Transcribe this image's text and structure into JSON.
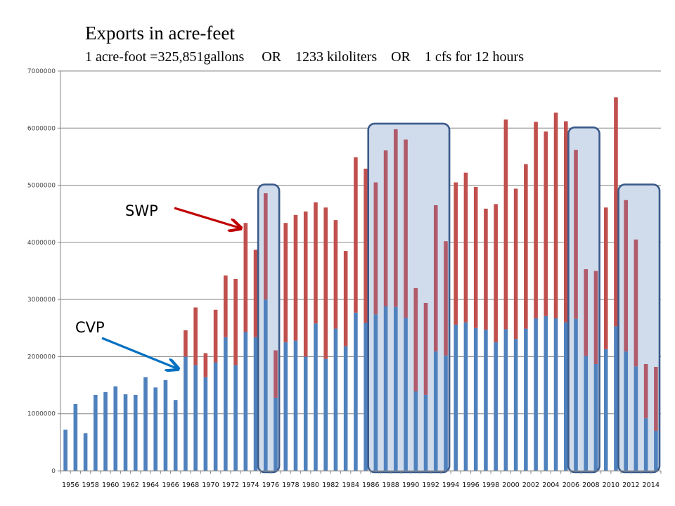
{
  "chart_data": {
    "type": "bar",
    "stacked": true,
    "title": "Exports in acre-feet",
    "subtitle": "1 acre-foot =325,851gallons     OR    1233 kiloliters    OR    1 cfs for 12 hours",
    "xlabel": "",
    "ylabel": "",
    "ylim": [
      0,
      7000000
    ],
    "yticks": [
      0,
      1000000,
      2000000,
      3000000,
      4000000,
      5000000,
      6000000,
      7000000
    ],
    "ytick_labels": [
      "0",
      "1000000",
      "2000000",
      "3000000",
      "4000000",
      "5000000",
      "6000000",
      "7000000"
    ],
    "grid": true,
    "legend": "none",
    "categories": [
      "1956",
      "1957",
      "1958",
      "1959",
      "1960",
      "1961",
      "1962",
      "1963",
      "1964",
      "1965",
      "1966",
      "1967",
      "1968",
      "1969",
      "1970",
      "1971",
      "1972",
      "1973",
      "1974",
      "1975",
      "1976",
      "1977",
      "1978",
      "1979",
      "1980",
      "1981",
      "1982",
      "1983",
      "1984",
      "1985",
      "1986",
      "1987",
      "1988",
      "1989",
      "1990",
      "1991",
      "1992",
      "1993",
      "1994",
      "1995",
      "1996",
      "1997",
      "1998",
      "1999",
      "2000",
      "2001",
      "2002",
      "2003",
      "2004",
      "2005",
      "2006",
      "2007",
      "2008",
      "2009",
      "2010",
      "2011",
      "2012",
      "2013",
      "2014",
      "2015"
    ],
    "xtick_labels": [
      "1956",
      "1958",
      "1960",
      "1962",
      "1964",
      "1966",
      "1968",
      "1970",
      "1972",
      "1974",
      "1976",
      "1978",
      "1980",
      "1982",
      "1984",
      "1986",
      "1988",
      "1990",
      "1992",
      "1994",
      "1996",
      "1998",
      "2000",
      "2002",
      "2004",
      "2006",
      "2008",
      "2010",
      "2012",
      "2014"
    ],
    "series": [
      {
        "name": "CVP",
        "color": "#4f81bd",
        "values": [
          720000,
          1170000,
          660000,
          1330000,
          1380000,
          1480000,
          1340000,
          1330000,
          1640000,
          1460000,
          1590000,
          1240000,
          2000000,
          1850000,
          1640000,
          1900000,
          2340000,
          1850000,
          2430000,
          2340000,
          3000000,
          1280000,
          2250000,
          2280000,
          2000000,
          2580000,
          1960000,
          2490000,
          2180000,
          2770000,
          2590000,
          2740000,
          2880000,
          2870000,
          2680000,
          1390000,
          1330000,
          2090000,
          2020000,
          2560000,
          2600000,
          2500000,
          2470000,
          2250000,
          2480000,
          2310000,
          2490000,
          2670000,
          2710000,
          2670000,
          2600000,
          2660000,
          2010000,
          1870000,
          2130000,
          2530000,
          2090000,
          1830000,
          920000,
          700000
        ]
      },
      {
        "name": "SWP",
        "color": "#c0504d",
        "values": [
          0,
          0,
          0,
          0,
          0,
          0,
          0,
          0,
          0,
          0,
          0,
          0,
          460000,
          1010000,
          420000,
          920000,
          1080000,
          1510000,
          1910000,
          1530000,
          1860000,
          830000,
          2090000,
          2200000,
          2540000,
          2120000,
          2650000,
          1900000,
          1670000,
          2720000,
          2700000,
          2310000,
          2730000,
          3110000,
          3120000,
          1810000,
          1610000,
          2560000,
          2000000,
          2490000,
          2620000,
          2470000,
          2120000,
          2420000,
          3670000,
          2630000,
          2880000,
          3440000,
          3230000,
          3600000,
          3520000,
          2960000,
          1520000,
          1630000,
          2480000,
          4010000,
          2650000,
          2220000,
          950000,
          1120000
        ]
      }
    ],
    "annotations": [
      {
        "text": "SWP",
        "color": "#c00000",
        "points_to_series": "SWP",
        "points_to_year": "1974"
      },
      {
        "text": "CVP",
        "color": "#0070c0",
        "points_to_series": "CVP",
        "points_to_year": "1968"
      }
    ],
    "highlight_ranges": [
      {
        "from": "1976",
        "to": "1977"
      },
      {
        "from": "1987",
        "to": "1994"
      },
      {
        "from": "2007",
        "to": "2009"
      },
      {
        "from": "2012",
        "to": "2015"
      }
    ]
  }
}
